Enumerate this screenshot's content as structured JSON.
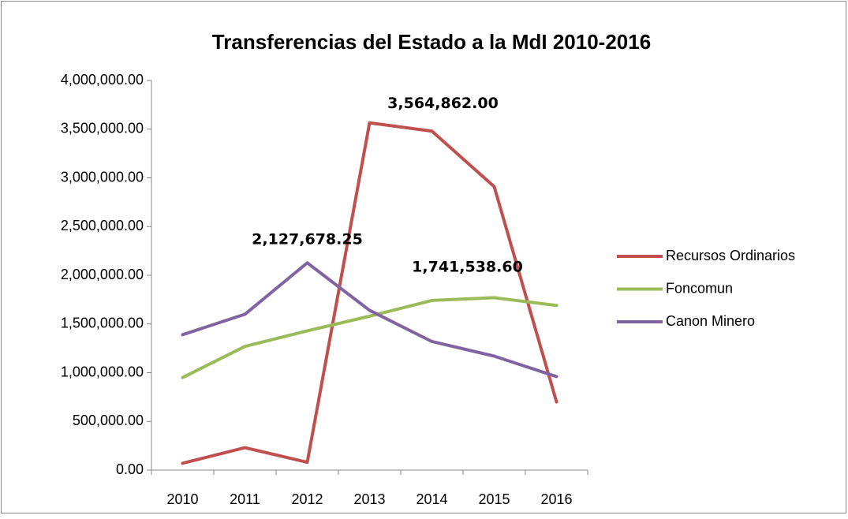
{
  "chart_data": {
    "type": "line",
    "title": "Transferencias del Estado a la MdI 2010-2016",
    "categories": [
      "2010",
      "2011",
      "2012",
      "2013",
      "2014",
      "2015",
      "2016"
    ],
    "series": [
      {
        "name": "Recursos Ordinarios",
        "color": "#c0504d",
        "values": [
          70000,
          230000,
          80000,
          3564862.0,
          3480000,
          2910000,
          700000
        ],
        "value_labels": [
          null,
          null,
          null,
          "3,564,862.00",
          null,
          null,
          null
        ]
      },
      {
        "name": "Foncomun",
        "color": "#9bbb59",
        "values": [
          950000,
          1270000,
          1430000,
          1580000,
          1741538.6,
          1770000,
          1690000
        ],
        "value_labels": [
          null,
          null,
          null,
          null,
          "1,741,538.60",
          null,
          null
        ]
      },
      {
        "name": "Canon Minero",
        "color": "#8064a2",
        "values": [
          1390000,
          1600000,
          2127678.25,
          1640000,
          1320000,
          1170000,
          960000
        ],
        "value_labels": [
          null,
          null,
          "2,127,678.25",
          null,
          null,
          null,
          null
        ]
      }
    ],
    "ylim": [
      0,
      4000000
    ],
    "yticks": [
      {
        "value": 0,
        "label": "0.00"
      },
      {
        "value": 500000,
        "label": "500,000.00"
      },
      {
        "value": 1000000,
        "label": "1,000,000.00"
      },
      {
        "value": 1500000,
        "label": "1,500,000.00"
      },
      {
        "value": 2000000,
        "label": "2,000,000.00"
      },
      {
        "value": 2500000,
        "label": "2,500,000.00"
      },
      {
        "value": 3000000,
        "label": "3,000,000.00"
      },
      {
        "value": 3500000,
        "label": "3,500,000.00"
      },
      {
        "value": 4000000,
        "label": "4,000,000.00"
      }
    ],
    "grid": false,
    "legend": "right"
  }
}
